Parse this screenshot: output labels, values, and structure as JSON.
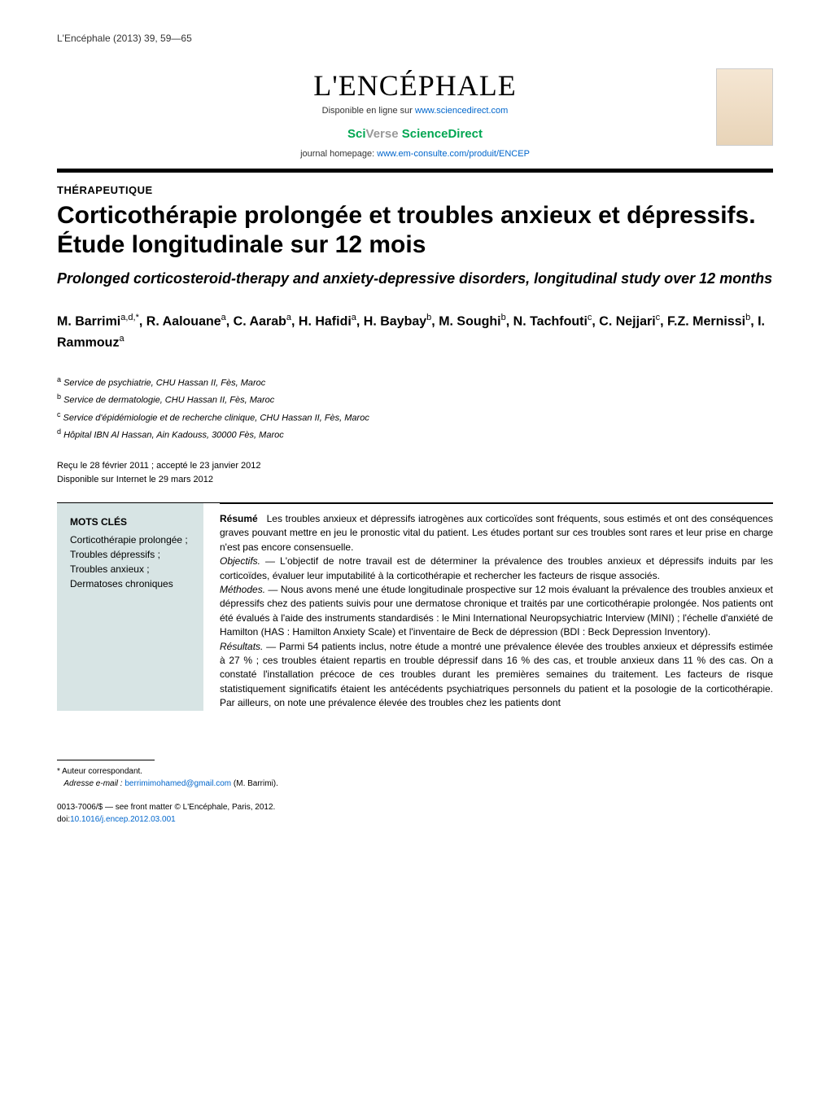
{
  "running_head": "L'Encéphale (2013) 39, 59—65",
  "journal": {
    "logo": "L'ENCÉPHALE",
    "available_prefix": "Disponible en ligne sur ",
    "available_link": "www.sciencedirect.com",
    "sciverse_sci": "Sci",
    "sciverse_verse": "Verse ",
    "sciverse_sd": "ScienceDirect",
    "homepage_prefix": "journal homepage: ",
    "homepage_link": "www.em-consulte.com/produit/ENCEP"
  },
  "article_type": "THÉRAPEUTIQUE",
  "title_fr": "Corticothérapie prolongée et troubles anxieux et dépressifs. Étude longitudinale sur 12 mois",
  "title_en": "Prolonged corticosteroid-therapy and anxiety-depressive disorders, longitudinal study over 12 months",
  "authors_html": "M. Barrimi<sup>a,d,*</sup>, R. Aalouane<sup>a</sup>, C. Aarab<sup>a</sup>, H. Hafidi<sup>a</sup>, H. Baybay<sup>b</sup>, M. Soughi<sup>b</sup>, N. Tachfouti<sup>c</sup>, C. Nejjari<sup>c</sup>, F.Z. Mernissi<sup>b</sup>, I. Rammouz<sup>a</sup>",
  "affiliations": [
    {
      "sup": "a",
      "text": "Service de psychiatrie, CHU Hassan II, Fès, Maroc"
    },
    {
      "sup": "b",
      "text": "Service de dermatologie, CHU Hassan II, Fès, Maroc"
    },
    {
      "sup": "c",
      "text": "Service d'épidémiologie et de recherche clinique, CHU Hassan II, Fès, Maroc"
    },
    {
      "sup": "d",
      "text": "Hôpital IBN Al Hassan, Ain Kadouss, 30000 Fès, Maroc"
    }
  ],
  "dates": {
    "line1": "Reçu le 28 février 2011 ; accepté le 23 janvier 2012",
    "line2": "Disponible sur Internet le 29 mars 2012"
  },
  "keywords": {
    "head": "MOTS CLÉS",
    "items": "Corticothérapie prolongée ;\nTroubles dépressifs ;\nTroubles anxieux ;\nDermatoses chroniques"
  },
  "abstract": {
    "lead_label": "Résumé",
    "lead": "Les troubles anxieux et dépressifs iatrogènes aux corticoïdes sont fréquents, sous estimés et ont des conséquences graves pouvant mettre en jeu le pronostic vital du patient. Les études portant sur ces troubles sont rares et leur prise en charge n'est pas encore consensuelle.",
    "objectifs_label": "Objectifs. —",
    "objectifs": "L'objectif de notre travail est de déterminer la prévalence des troubles anxieux et dépressifs induits par les corticoïdes, évaluer leur imputabilité à la corticothérapie et rechercher les facteurs de risque associés.",
    "methodes_label": "Méthodes. —",
    "methodes": "Nous avons mené une étude longitudinale prospective sur 12 mois évaluant la prévalence des troubles anxieux et dépressifs chez des patients suivis pour une dermatose chronique et traités par une corticothérapie prolongée. Nos patients ont été évalués à l'aide des instruments standardisés : le Mini International Neuropsychiatric Interview (MINI) ; l'échelle d'anxiété de Hamilton (HAS : Hamilton Anxiety Scale) et l'inventaire de Beck de dépression (BDI : Beck Depression Inventory).",
    "resultats_label": "Résultats. —",
    "resultats": "Parmi 54 patients inclus, notre étude a montré une prévalence élevée des troubles anxieux et dépressifs estimée à 27 % ; ces troubles étaient repartis en trouble dépressif dans 16 % des cas, et trouble anxieux dans 11 % des cas. On a constaté l'installation précoce de ces troubles durant les premières semaines du traitement. Les facteurs de risque statistiquement significatifs étaient les antécédents psychiatriques personnels du patient et la posologie de la corticothérapie. Par ailleurs, on note une prévalence élevée des troubles chez les patients dont"
  },
  "corresponding": {
    "star": "* Auteur correspondant.",
    "email_label": "Adresse e-mail : ",
    "email": "berrimimohamed@gmail.com",
    "email_suffix": " (M. Barrimi)."
  },
  "copyright": {
    "line1": "0013-7006/$ — see front matter © L'Encéphale, Paris, 2012.",
    "doi_prefix": "doi:",
    "doi": "10.1016/j.encep.2012.03.001"
  },
  "colors": {
    "link": "#0066cc",
    "green": "#00a651",
    "kw_bg": "#d7e4e4"
  }
}
